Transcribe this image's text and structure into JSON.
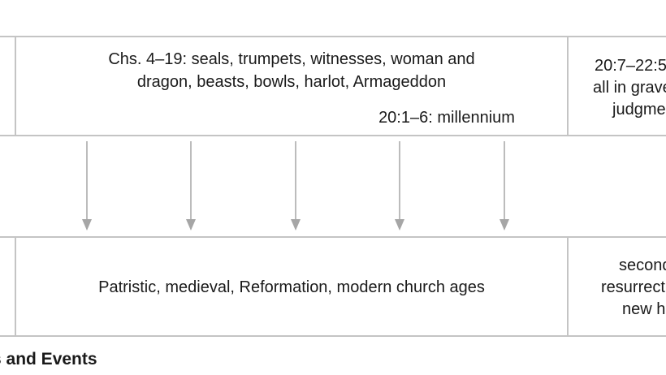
{
  "top_row": {
    "middle": {
      "line1": "Chs. 4–19: seals, trumpets, witnesses, woman and",
      "line2": "dragon, beasts, bowls, harlot, Armageddon",
      "millennium": "20:1–6: millennium"
    },
    "right": {
      "line1": "20:7–22:5",
      "line2": "all in grave",
      "line3": "judgme"
    }
  },
  "bottom_row": {
    "middle": "Patristic, medieval, Reformation, modern church ages",
    "right": {
      "line1": "second",
      "line2": "resurrect",
      "line3": "new h"
    }
  },
  "caption": "s and Events",
  "colors": {
    "rule": "#c4c4c4",
    "arrow": "#a6a6a6",
    "text": "#1a1a1a"
  }
}
